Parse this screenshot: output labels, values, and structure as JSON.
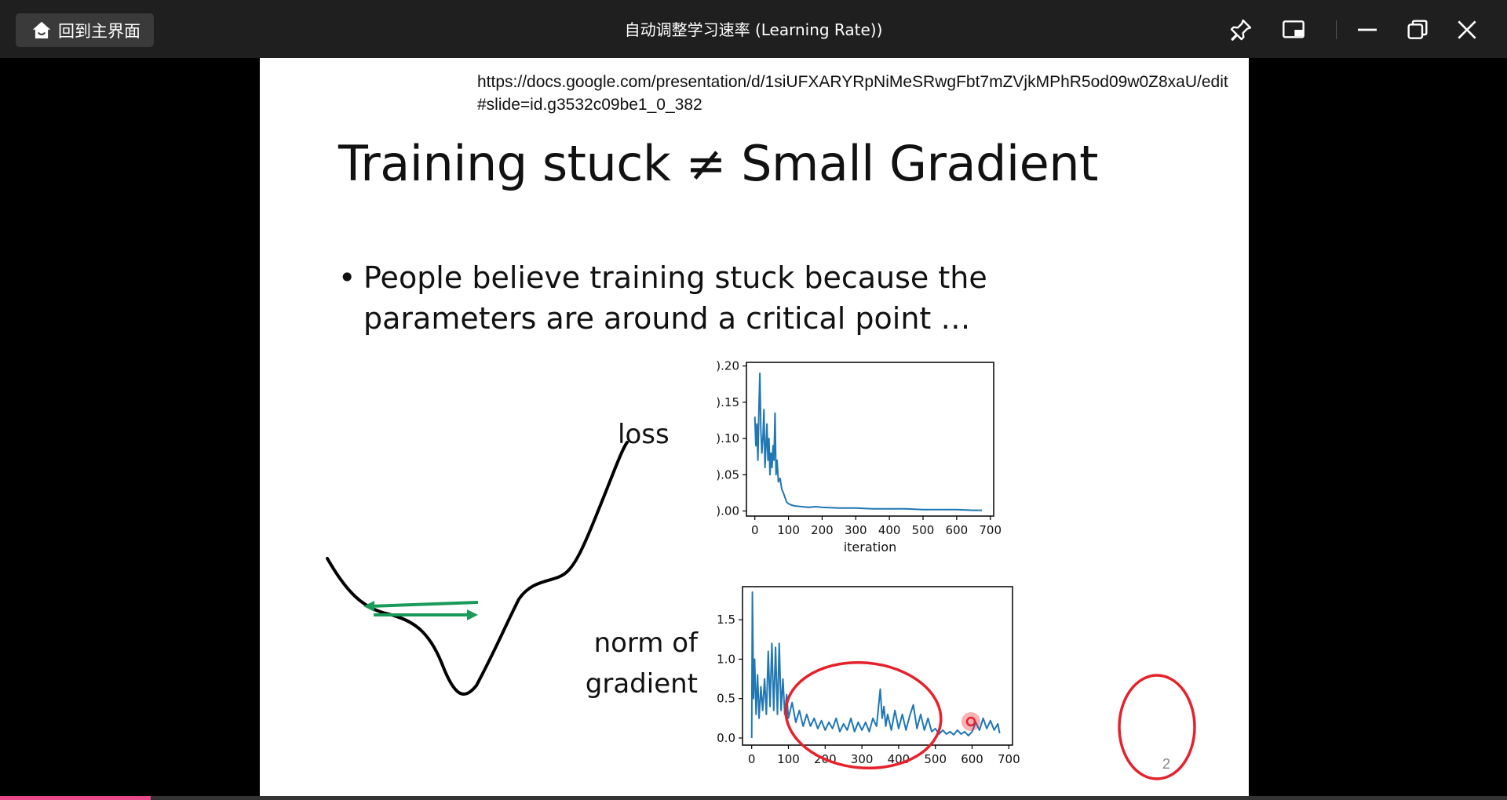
{
  "window": {
    "home_button": "回到主界面",
    "title": "自动调整学习速率 (Learning Rate))",
    "progress": 0.1
  },
  "slide": {
    "url": "https://docs.google.com/presentation/d/1siUFXARYRpNiMeSRwgFbt7mZVjkMPhR5od09w0Z8xaU/edit#slide=id.g3532c09be1_0_382",
    "title": "Training stuck ≠ Small Gradient",
    "bullet_symbol": "•",
    "bullet": "People believe training stuck because the parameters are around a critical point …",
    "label_loss": "loss",
    "label_grad_line1": "norm of",
    "label_grad_line2": "gradient",
    "page_number": "2"
  },
  "chart_data": [
    {
      "type": "line",
      "name": "loss",
      "xlabel": "iteration",
      "xlim": [
        -25,
        710
      ],
      "ylim": [
        -0.007,
        0.205
      ],
      "x_ticks": [
        0,
        100,
        200,
        300,
        400,
        500,
        600,
        700
      ],
      "y_ticks": [
        0.0,
        0.05,
        0.1,
        0.15,
        0.2
      ],
      "y_tick_labels": [
        ").00",
        ").05",
        ").10",
        ").15",
        ").20"
      ],
      "points": [
        [
          0,
          0.13
        ],
        [
          3,
          0.09
        ],
        [
          6,
          0.12
        ],
        [
          9,
          0.07
        ],
        [
          12,
          0.14
        ],
        [
          15,
          0.19
        ],
        [
          18,
          0.11
        ],
        [
          21,
          0.08
        ],
        [
          24,
          0.1
        ],
        [
          27,
          0.14
        ],
        [
          30,
          0.06
        ],
        [
          33,
          0.09
        ],
        [
          36,
          0.12
        ],
        [
          39,
          0.07
        ],
        [
          42,
          0.1
        ],
        [
          45,
          0.05
        ],
        [
          48,
          0.08
        ],
        [
          51,
          0.06
        ],
        [
          54,
          0.09
        ],
        [
          57,
          0.07
        ],
        [
          60,
          0.135
        ],
        [
          63,
          0.05
        ],
        [
          66,
          0.07
        ],
        [
          70,
          0.04
        ],
        [
          75,
          0.045
        ],
        [
          80,
          0.03
        ],
        [
          85,
          0.025
        ],
        [
          90,
          0.018
        ],
        [
          95,
          0.012
        ],
        [
          100,
          0.01
        ],
        [
          110,
          0.008
        ],
        [
          120,
          0.007
        ],
        [
          140,
          0.006
        ],
        [
          160,
          0.005
        ],
        [
          180,
          0.006
        ],
        [
          200,
          0.005
        ],
        [
          250,
          0.004
        ],
        [
          300,
          0.004
        ],
        [
          350,
          0.003
        ],
        [
          400,
          0.003
        ],
        [
          450,
          0.003
        ],
        [
          500,
          0.002
        ],
        [
          550,
          0.002
        ],
        [
          600,
          0.002
        ],
        [
          650,
          0.001
        ],
        [
          675,
          0.001
        ]
      ]
    },
    {
      "type": "line",
      "name": "norm of gradient",
      "xlabel": "",
      "xlim": [
        -25,
        710
      ],
      "ylim": [
        -0.09,
        1.92
      ],
      "x_ticks": [
        0,
        100,
        200,
        300,
        400,
        500,
        600,
        700
      ],
      "y_ticks": [
        0.0,
        0.5,
        1.0,
        1.5
      ],
      "points": [
        [
          0,
          0.0
        ],
        [
          2,
          1.85
        ],
        [
          5,
          0.5
        ],
        [
          8,
          1.0
        ],
        [
          12,
          0.3
        ],
        [
          16,
          0.8
        ],
        [
          20,
          0.25
        ],
        [
          25,
          0.65
        ],
        [
          30,
          0.35
        ],
        [
          35,
          0.75
        ],
        [
          40,
          0.3
        ],
        [
          45,
          1.1
        ],
        [
          50,
          0.4
        ],
        [
          55,
          1.2
        ],
        [
          60,
          0.35
        ],
        [
          65,
          1.15
        ],
        [
          70,
          0.3
        ],
        [
          75,
          1.2
        ],
        [
          80,
          0.35
        ],
        [
          85,
          0.75
        ],
        [
          90,
          0.3
        ],
        [
          95,
          0.55
        ],
        [
          100,
          0.25
        ],
        [
          110,
          0.45
        ],
        [
          120,
          0.2
        ],
        [
          130,
          0.35
        ],
        [
          140,
          0.15
        ],
        [
          150,
          0.3
        ],
        [
          160,
          0.15
        ],
        [
          170,
          0.25
        ],
        [
          180,
          0.12
        ],
        [
          190,
          0.22
        ],
        [
          200,
          0.1
        ],
        [
          210,
          0.2
        ],
        [
          220,
          0.12
        ],
        [
          230,
          0.25
        ],
        [
          240,
          0.08
        ],
        [
          250,
          0.18
        ],
        [
          260,
          0.1
        ],
        [
          270,
          0.25
        ],
        [
          280,
          0.08
        ],
        [
          290,
          0.2
        ],
        [
          300,
          0.1
        ],
        [
          310,
          0.2
        ],
        [
          320,
          0.08
        ],
        [
          330,
          0.25
        ],
        [
          340,
          0.15
        ],
        [
          350,
          0.62
        ],
        [
          355,
          0.25
        ],
        [
          360,
          0.4
        ],
        [
          365,
          0.15
        ],
        [
          370,
          0.3
        ],
        [
          380,
          0.1
        ],
        [
          390,
          0.35
        ],
        [
          400,
          0.12
        ],
        [
          410,
          0.3
        ],
        [
          420,
          0.1
        ],
        [
          430,
          0.28
        ],
        [
          440,
          0.42
        ],
        [
          450,
          0.12
        ],
        [
          460,
          0.3
        ],
        [
          470,
          0.1
        ],
        [
          480,
          0.25
        ],
        [
          490,
          0.08
        ],
        [
          500,
          0.12
        ],
        [
          510,
          0.05
        ],
        [
          520,
          0.1
        ],
        [
          530,
          0.05
        ],
        [
          540,
          0.08
        ],
        [
          550,
          0.04
        ],
        [
          560,
          0.1
        ],
        [
          570,
          0.05
        ],
        [
          580,
          0.08
        ],
        [
          590,
          0.03
        ],
        [
          600,
          0.08
        ],
        [
          610,
          0.2
        ],
        [
          620,
          0.1
        ],
        [
          630,
          0.25
        ],
        [
          640,
          0.12
        ],
        [
          650,
          0.22
        ],
        [
          660,
          0.1
        ],
        [
          670,
          0.18
        ],
        [
          675,
          0.06
        ]
      ]
    }
  ]
}
